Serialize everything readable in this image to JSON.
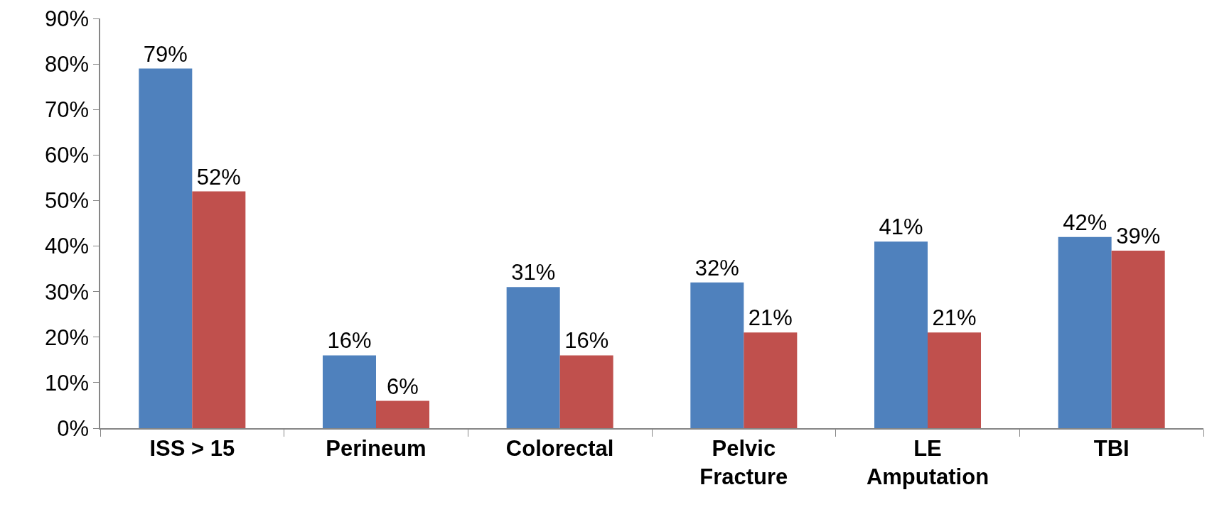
{
  "chart_data": {
    "type": "bar",
    "categories": [
      "ISS > 15",
      "Perineum",
      "Colorectal",
      "Pelvic\nFracture",
      "LE\nAmputation",
      "TBI"
    ],
    "series": [
      {
        "color": "#4f81bd",
        "values": [
          79,
          16,
          31,
          32,
          41,
          42
        ],
        "value_labels": [
          "79%",
          "16%",
          "31%",
          "32%",
          "41%",
          "42%"
        ]
      },
      {
        "color": "#c0504d",
        "values": [
          52,
          6,
          16,
          21,
          21,
          39
        ],
        "value_labels": [
          "52%",
          "6%",
          "16%",
          "21%",
          "21%",
          "39%"
        ]
      }
    ],
    "ylim": [
      0,
      90
    ],
    "yticks": [
      {
        "value": 0,
        "label": "0%"
      },
      {
        "value": 10,
        "label": "10%"
      },
      {
        "value": 20,
        "label": "20%"
      },
      {
        "value": 30,
        "label": "30%"
      },
      {
        "value": 40,
        "label": "40%"
      },
      {
        "value": 50,
        "label": "50%"
      },
      {
        "value": 60,
        "label": "60%"
      },
      {
        "value": 70,
        "label": "70%"
      },
      {
        "value": 80,
        "label": "80%"
      },
      {
        "value": 90,
        "label": "90%"
      }
    ],
    "grid": false
  }
}
